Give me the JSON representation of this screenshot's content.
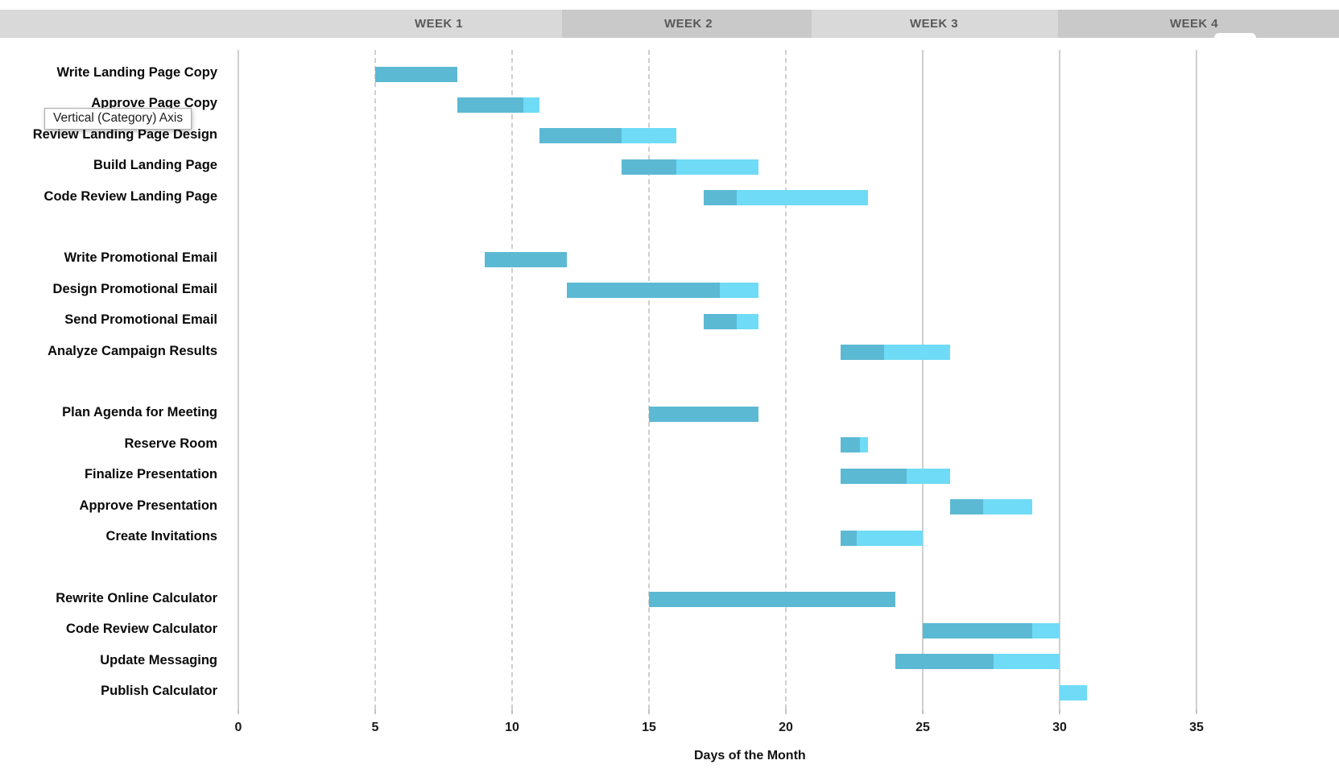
{
  "header": {
    "weeks": [
      {
        "label": "WEEK 1"
      },
      {
        "label": "WEEK 2"
      },
      {
        "label": "WEEK 3"
      },
      {
        "label": "WEEK 4"
      }
    ]
  },
  "tooltip": {
    "text": "Vertical (Category) Axis"
  },
  "axis": {
    "title": "Days of the Month",
    "tick_labels": [
      "0",
      "5",
      "10",
      "15",
      "20",
      "25",
      "30",
      "35"
    ]
  },
  "colors": {
    "bar_complete": "#5cb9d3",
    "bar_remaining": "#6fdbf6",
    "band_light": "#d9d9d9",
    "band_dark": "#c9c9c9",
    "week_text": "#595959"
  },
  "chart_data": {
    "type": "bar",
    "orientation": "horizontal-gantt",
    "title": "",
    "xlabel": "Days of the Month",
    "ylabel": "",
    "xlim": [
      0,
      40
    ],
    "xticks": [
      0,
      5,
      10,
      15,
      20,
      25,
      30,
      35
    ],
    "grid": "vertical",
    "legend": "none",
    "series_meaning": {
      "dark": "completed portion",
      "light": "remaining portion"
    },
    "tasks": [
      {
        "label": "Write Landing Page Copy",
        "start": 5,
        "end": 8,
        "complete": 1.0
      },
      {
        "label": "Approve Page Copy",
        "start": 8,
        "end": 11,
        "complete": 0.8
      },
      {
        "label": "Review Landing Page Design",
        "start": 11,
        "end": 16,
        "complete": 0.6
      },
      {
        "label": "Build Landing Page",
        "start": 14,
        "end": 19,
        "complete": 0.4
      },
      {
        "label": "Code Review Landing Page",
        "start": 17,
        "end": 23,
        "complete": 0.2
      },
      {
        "label": "",
        "start": null,
        "end": null,
        "complete": null
      },
      {
        "label": "Write Promotional Email",
        "start": 9,
        "end": 12,
        "complete": 1.0
      },
      {
        "label": "Design Promotional Email",
        "start": 12,
        "end": 19,
        "complete": 0.8
      },
      {
        "label": "Send Promotional Email",
        "start": 17,
        "end": 19,
        "complete": 0.6
      },
      {
        "label": "Analyze Campaign Results",
        "start": 22,
        "end": 26,
        "complete": 0.4
      },
      {
        "label": "",
        "start": null,
        "end": null,
        "complete": null
      },
      {
        "label": "Plan Agenda for Meeting",
        "start": 15,
        "end": 19,
        "complete": 1.0
      },
      {
        "label": "Reserve Room",
        "start": 22,
        "end": 23,
        "complete": 0.7
      },
      {
        "label": "Finalize Presentation",
        "start": 22,
        "end": 26,
        "complete": 0.6
      },
      {
        "label": "Approve Presentation",
        "start": 26,
        "end": 29,
        "complete": 0.4
      },
      {
        "label": "Create Invitations",
        "start": 22,
        "end": 25,
        "complete": 0.2
      },
      {
        "label": "",
        "start": null,
        "end": null,
        "complete": null
      },
      {
        "label": "Rewrite Online Calculator",
        "start": 15,
        "end": 24,
        "complete": 1.0
      },
      {
        "label": "Code Review Calculator",
        "start": 25,
        "end": 30,
        "complete": 0.8
      },
      {
        "label": "Update Messaging",
        "start": 24,
        "end": 30,
        "complete": 0.6
      },
      {
        "label": "Publish Calculator",
        "start": 30,
        "end": 31,
        "complete": 0.0
      }
    ]
  }
}
